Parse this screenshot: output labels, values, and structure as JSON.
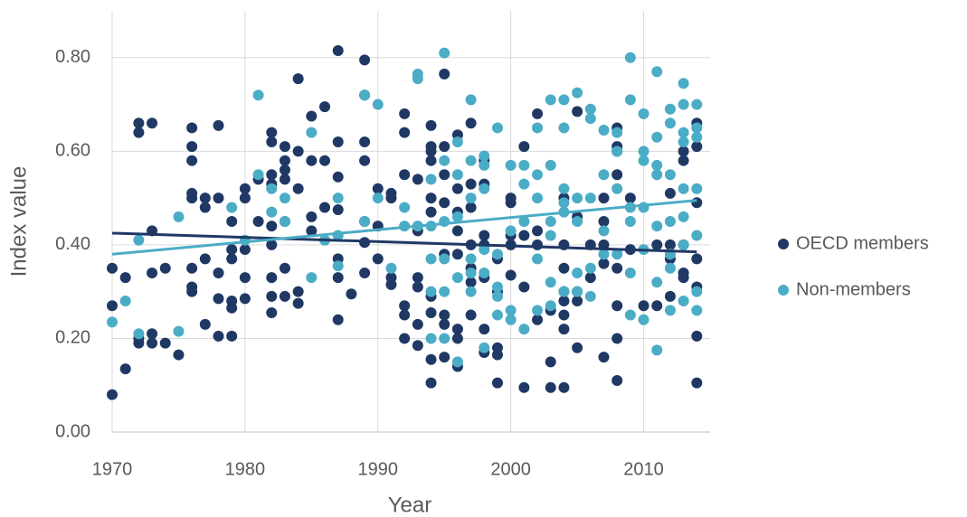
{
  "chart_data": {
    "type": "scatter",
    "x_label": "Year",
    "y_label": "Index value",
    "xlim": [
      1970,
      2015
    ],
    "ylim": [
      0,
      0.9
    ],
    "xticks": [
      1970,
      1980,
      1990,
      2000,
      2010
    ],
    "yticks": [
      {
        "value": 0,
        "label": "0.00"
      },
      {
        "value": 0.2,
        "label": "0.20"
      },
      {
        "value": 0.4,
        "label": "0.40"
      },
      {
        "value": 0.6,
        "label": "0.60"
      },
      {
        "value": 0.8,
        "label": "0.80"
      }
    ],
    "grid": true,
    "legend": "right",
    "series": [
      {
        "name": "OECD members",
        "color": "#203864",
        "x": [
          1970,
          1970,
          1970,
          1971,
          1971,
          1972,
          1972,
          1972,
          1972,
          1973,
          1973,
          1973,
          1973,
          1973,
          1974,
          1974,
          1975,
          1976,
          1976,
          1976,
          1976,
          1976,
          1976,
          1976,
          1976,
          1977,
          1977,
          1977,
          1977,
          1978,
          1978,
          1978,
          1978,
          1978,
          1979,
          1979,
          1979,
          1979,
          1979,
          1979,
          1980,
          1980,
          1980,
          1980,
          1980,
          1981,
          1981,
          1982,
          1982,
          1982,
          1982,
          1982,
          1982,
          1982,
          1982,
          1982,
          1983,
          1983,
          1983,
          1983,
          1983,
          1983,
          1983,
          1984,
          1984,
          1984,
          1984,
          1984,
          1985,
          1985,
          1985,
          1985,
          1986,
          1986,
          1986,
          1987,
          1987,
          1987,
          1987,
          1987,
          1987,
          1987,
          1988,
          1989,
          1989,
          1989,
          1989,
          1989,
          1989,
          1989,
          1990,
          1990,
          1990,
          1991,
          1991,
          1991,
          1991,
          1992,
          1992,
          1992,
          1992,
          1992,
          1992,
          1993,
          1993,
          1993,
          1993,
          1993,
          1993,
          1994,
          1994,
          1994,
          1994,
          1994,
          1994,
          1994,
          1994,
          1994,
          1994,
          1995,
          1995,
          1995,
          1995,
          1995,
          1995,
          1995,
          1995,
          1996,
          1996,
          1996,
          1996,
          1996,
          1996,
          1996,
          1996,
          1997,
          1997,
          1997,
          1997,
          1997,
          1997,
          1997,
          1998,
          1998,
          1998,
          1998,
          1998,
          1998,
          1998,
          1999,
          1999,
          1999,
          1999,
          1999,
          2000,
          2000,
          2000,
          2000,
          2000,
          2001,
          2001,
          2001,
          2001,
          2002,
          2002,
          2002,
          2002,
          2003,
          2003,
          2003,
          2004,
          2004,
          2004,
          2004,
          2004,
          2004,
          2004,
          2004,
          2005,
          2005,
          2005,
          2005,
          2005,
          2006,
          2006,
          2007,
          2007,
          2007,
          2007,
          2007,
          2008,
          2008,
          2008,
          2008,
          2008,
          2008,
          2008,
          2008,
          2009,
          2009,
          2010,
          2011,
          2011,
          2012,
          2012,
          2012,
          2012,
          2013,
          2013,
          2013,
          2013,
          2013,
          2014,
          2014,
          2014,
          2014,
          2014,
          2014,
          2014
        ],
        "values": [
          0.08,
          0.27,
          0.35,
          0.135,
          0.33,
          0.66,
          0.64,
          0.19,
          0.2,
          0.66,
          0.43,
          0.34,
          0.19,
          0.21,
          0.35,
          0.19,
          0.165,
          0.65,
          0.61,
          0.58,
          0.51,
          0.5,
          0.35,
          0.31,
          0.3,
          0.5,
          0.48,
          0.37,
          0.23,
          0.655,
          0.5,
          0.34,
          0.285,
          0.205,
          0.45,
          0.39,
          0.37,
          0.28,
          0.265,
          0.205,
          0.52,
          0.5,
          0.39,
          0.33,
          0.285,
          0.54,
          0.45,
          0.64,
          0.62,
          0.55,
          0.53,
          0.44,
          0.4,
          0.33,
          0.29,
          0.255,
          0.61,
          0.58,
          0.56,
          0.54,
          0.45,
          0.35,
          0.29,
          0.755,
          0.6,
          0.52,
          0.3,
          0.275,
          0.675,
          0.58,
          0.46,
          0.43,
          0.695,
          0.58,
          0.48,
          0.815,
          0.62,
          0.545,
          0.475,
          0.37,
          0.33,
          0.24,
          0.295,
          0.795,
          0.72,
          0.62,
          0.58,
          0.45,
          0.405,
          0.34,
          0.52,
          0.44,
          0.37,
          0.51,
          0.5,
          0.33,
          0.315,
          0.68,
          0.64,
          0.55,
          0.27,
          0.25,
          0.2,
          0.54,
          0.43,
          0.33,
          0.31,
          0.23,
          0.185,
          0.655,
          0.61,
          0.6,
          0.58,
          0.5,
          0.47,
          0.29,
          0.255,
          0.155,
          0.105,
          0.765,
          0.61,
          0.55,
          0.49,
          0.38,
          0.25,
          0.23,
          0.16,
          0.635,
          0.52,
          0.47,
          0.43,
          0.38,
          0.22,
          0.2,
          0.14,
          0.66,
          0.53,
          0.48,
          0.4,
          0.35,
          0.32,
          0.25,
          0.58,
          0.53,
          0.42,
          0.4,
          0.33,
          0.22,
          0.17,
          0.37,
          0.3,
          0.18,
          0.165,
          0.105,
          0.5,
          0.49,
          0.42,
          0.4,
          0.335,
          0.61,
          0.42,
          0.31,
          0.095,
          0.68,
          0.43,
          0.4,
          0.24,
          0.26,
          0.15,
          0.095,
          0.5,
          0.4,
          0.35,
          0.3,
          0.28,
          0.25,
          0.22,
          0.095,
          0.685,
          0.46,
          0.3,
          0.28,
          0.18,
          0.4,
          0.33,
          0.5,
          0.45,
          0.4,
          0.36,
          0.16,
          0.65,
          0.61,
          0.6,
          0.55,
          0.35,
          0.27,
          0.2,
          0.11,
          0.5,
          0.39,
          0.27,
          0.4,
          0.27,
          0.51,
          0.4,
          0.37,
          0.29,
          0.6,
          0.58,
          0.4,
          0.34,
          0.33,
          0.66,
          0.61,
          0.49,
          0.37,
          0.31,
          0.205,
          0.105
        ],
        "trend": {
          "x": [
            1970,
            2014
          ],
          "values": [
            0.425,
            0.385
          ]
        }
      },
      {
        "name": "Non-members",
        "color": "#4bacc6",
        "x": [
          1970,
          1971,
          1972,
          1972,
          1975,
          1975,
          1979,
          1980,
          1981,
          1981,
          1982,
          1982,
          1983,
          1983,
          1985,
          1985,
          1986,
          1987,
          1987,
          1987,
          1989,
          1989,
          1990,
          1990,
          1991,
          1992,
          1992,
          1993,
          1993,
          1993,
          1994,
          1994,
          1994,
          1994,
          1994,
          1995,
          1995,
          1995,
          1995,
          1995,
          1995,
          1996,
          1996,
          1996,
          1996,
          1996,
          1997,
          1997,
          1997,
          1997,
          1997,
          1997,
          1998,
          1998,
          1998,
          1998,
          1998,
          1998,
          1999,
          1999,
          1999,
          1999,
          1999,
          2000,
          2000,
          2000,
          2000,
          2001,
          2001,
          2001,
          2001,
          2002,
          2002,
          2002,
          2002,
          2002,
          2003,
          2003,
          2003,
          2003,
          2003,
          2003,
          2004,
          2004,
          2004,
          2004,
          2004,
          2004,
          2005,
          2005,
          2005,
          2005,
          2005,
          2006,
          2006,
          2006,
          2006,
          2006,
          2007,
          2007,
          2007,
          2007,
          2008,
          2008,
          2008,
          2008,
          2009,
          2009,
          2009,
          2009,
          2009,
          2009,
          2010,
          2010,
          2010,
          2010,
          2010,
          2010,
          2011,
          2011,
          2011,
          2011,
          2011,
          2011,
          2011,
          2012,
          2012,
          2012,
          2012,
          2012,
          2012,
          2012,
          2013,
          2013,
          2013,
          2013,
          2013,
          2013,
          2013,
          2013,
          2014,
          2014,
          2014,
          2014,
          2014,
          2014,
          2014
        ],
        "values": [
          0.235,
          0.28,
          0.41,
          0.21,
          0.46,
          0.215,
          0.48,
          0.41,
          0.72,
          0.55,
          0.52,
          0.47,
          0.5,
          0.45,
          0.64,
          0.33,
          0.41,
          0.5,
          0.42,
          0.355,
          0.72,
          0.45,
          0.7,
          0.5,
          0.35,
          0.48,
          0.44,
          0.765,
          0.755,
          0.44,
          0.54,
          0.44,
          0.37,
          0.3,
          0.2,
          0.81,
          0.58,
          0.45,
          0.37,
          0.3,
          0.2,
          0.62,
          0.55,
          0.46,
          0.33,
          0.15,
          0.71,
          0.58,
          0.5,
          0.37,
          0.34,
          0.3,
          0.59,
          0.57,
          0.52,
          0.39,
          0.34,
          0.18,
          0.65,
          0.38,
          0.31,
          0.29,
          0.25,
          0.57,
          0.43,
          0.26,
          0.24,
          0.57,
          0.53,
          0.45,
          0.22,
          0.65,
          0.55,
          0.5,
          0.37,
          0.26,
          0.71,
          0.57,
          0.45,
          0.42,
          0.32,
          0.27,
          0.71,
          0.65,
          0.52,
          0.49,
          0.47,
          0.3,
          0.725,
          0.5,
          0.45,
          0.34,
          0.3,
          0.69,
          0.67,
          0.5,
          0.35,
          0.29,
          0.645,
          0.55,
          0.43,
          0.38,
          0.64,
          0.6,
          0.52,
          0.38,
          0.8,
          0.71,
          0.48,
          0.45,
          0.34,
          0.25,
          0.68,
          0.6,
          0.58,
          0.48,
          0.39,
          0.24,
          0.77,
          0.63,
          0.57,
          0.55,
          0.44,
          0.32,
          0.175,
          0.69,
          0.66,
          0.55,
          0.45,
          0.38,
          0.35,
          0.26,
          0.745,
          0.7,
          0.64,
          0.62,
          0.52,
          0.46,
          0.4,
          0.28,
          0.7,
          0.65,
          0.63,
          0.52,
          0.42,
          0.3,
          0.26
        ],
        "trend": {
          "x": [
            1970,
            2014
          ],
          "values": [
            0.38,
            0.495
          ]
        }
      }
    ]
  }
}
